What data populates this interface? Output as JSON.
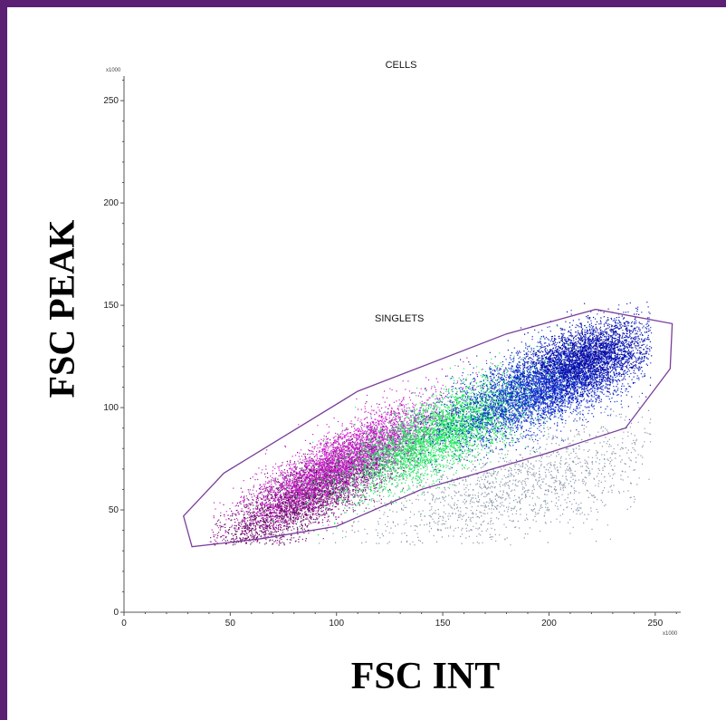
{
  "colors": {
    "frame": "#5b1f73",
    "gate": "#7a3f9a",
    "axis": "#555555",
    "populations": [
      "#6a0f6a",
      "#d020d0",
      "#20e860",
      "#1030d0",
      "#0a0aa0",
      "#8a98a8"
    ]
  },
  "chart_data": {
    "type": "scatter",
    "title": "CELLS",
    "xlabel": "FSC INT",
    "ylabel": "FSC PEAK",
    "x_multiplier": "x1000",
    "y_multiplier": "x1000",
    "xlim": [
      0,
      262
    ],
    "ylim": [
      0,
      262
    ],
    "x_ticks": [
      0,
      50,
      100,
      150,
      200,
      250
    ],
    "y_ticks": [
      0,
      50,
      100,
      150,
      200,
      250
    ],
    "grid": false,
    "gates": [
      {
        "name": "SINGLETS",
        "label_at": [
          118,
          142
        ],
        "polygon": [
          [
            28,
            47
          ],
          [
            47,
            68
          ],
          [
            110,
            108
          ],
          [
            180,
            136
          ],
          [
            222,
            148
          ],
          [
            258,
            141
          ],
          [
            257,
            119
          ],
          [
            236,
            90
          ],
          [
            200,
            78
          ],
          [
            140,
            60
          ],
          [
            100,
            42
          ],
          [
            65,
            36
          ],
          [
            32,
            32
          ]
        ]
      }
    ],
    "populations": [
      {
        "name": "dark-magenta",
        "color": "#6a0f6a",
        "center": [
          90,
          60
        ],
        "slope": 0.62,
        "spread_along": 26,
        "spread_across": 7,
        "count": 4200
      },
      {
        "name": "magenta",
        "color": "#d020d0",
        "center": [
          105,
          75
        ],
        "slope": 0.6,
        "spread_along": 26,
        "spread_across": 7,
        "count": 3600
      },
      {
        "name": "green",
        "color": "#20e860",
        "center": [
          150,
          88
        ],
        "slope": 0.55,
        "spread_along": 26,
        "spread_across": 8,
        "count": 4200
      },
      {
        "name": "blue",
        "color": "#1030d0",
        "center": [
          200,
          112
        ],
        "slope": 0.5,
        "spread_along": 25,
        "spread_across": 9,
        "count": 5200
      },
      {
        "name": "navy",
        "color": "#0a0aa0",
        "center": [
          218,
          124
        ],
        "slope": 0.35,
        "spread_along": 14,
        "spread_across": 8,
        "count": 2200
      },
      {
        "name": "debris",
        "color": "#8a98a8",
        "center": [
          185,
          62
        ],
        "slope": 0.3,
        "spread_along": 40,
        "spread_across": 12,
        "count": 1600
      }
    ]
  }
}
